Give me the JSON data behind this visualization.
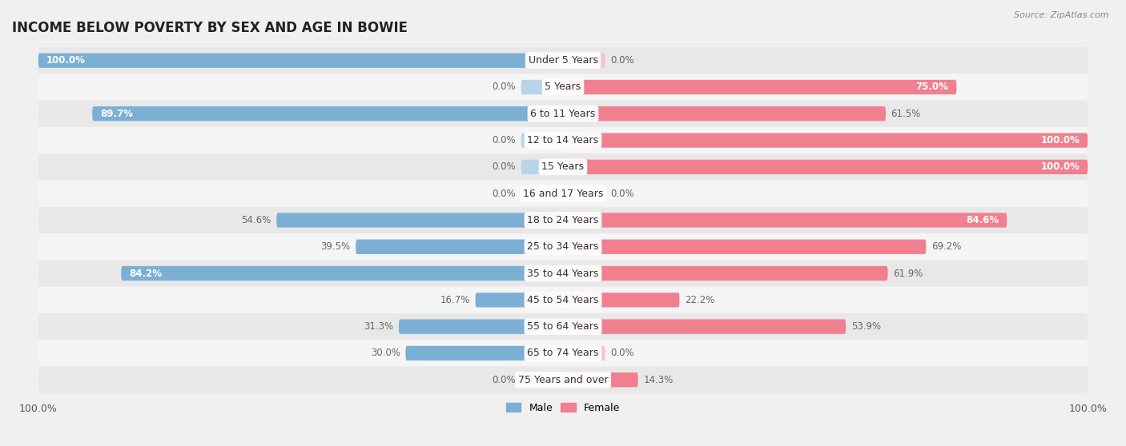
{
  "title": "INCOME BELOW POVERTY BY SEX AND AGE IN BOWIE",
  "source": "Source: ZipAtlas.com",
  "categories": [
    "Under 5 Years",
    "5 Years",
    "6 to 11 Years",
    "12 to 14 Years",
    "15 Years",
    "16 and 17 Years",
    "18 to 24 Years",
    "25 to 34 Years",
    "35 to 44 Years",
    "45 to 54 Years",
    "55 to 64 Years",
    "65 to 74 Years",
    "75 Years and over"
  ],
  "male": [
    100.0,
    0.0,
    89.7,
    0.0,
    0.0,
    0.0,
    54.6,
    39.5,
    84.2,
    16.7,
    31.3,
    30.0,
    0.0
  ],
  "female": [
    0.0,
    75.0,
    61.5,
    100.0,
    100.0,
    0.0,
    84.6,
    69.2,
    61.9,
    22.2,
    53.9,
    0.0,
    14.3
  ],
  "male_color": "#7bafd4",
  "male_stub_color": "#b8d4e8",
  "female_color": "#f08090",
  "female_stub_color": "#f5c0cc",
  "male_label": "Male",
  "female_label": "Female",
  "stub_size": 8.0,
  "row_colors": [
    "#f0f0f0",
    "#fafafa"
  ],
  "title_fontsize": 12,
  "label_fontsize": 9,
  "tick_fontsize": 9,
  "value_fontsize": 8.5,
  "cat_fontsize": 9
}
